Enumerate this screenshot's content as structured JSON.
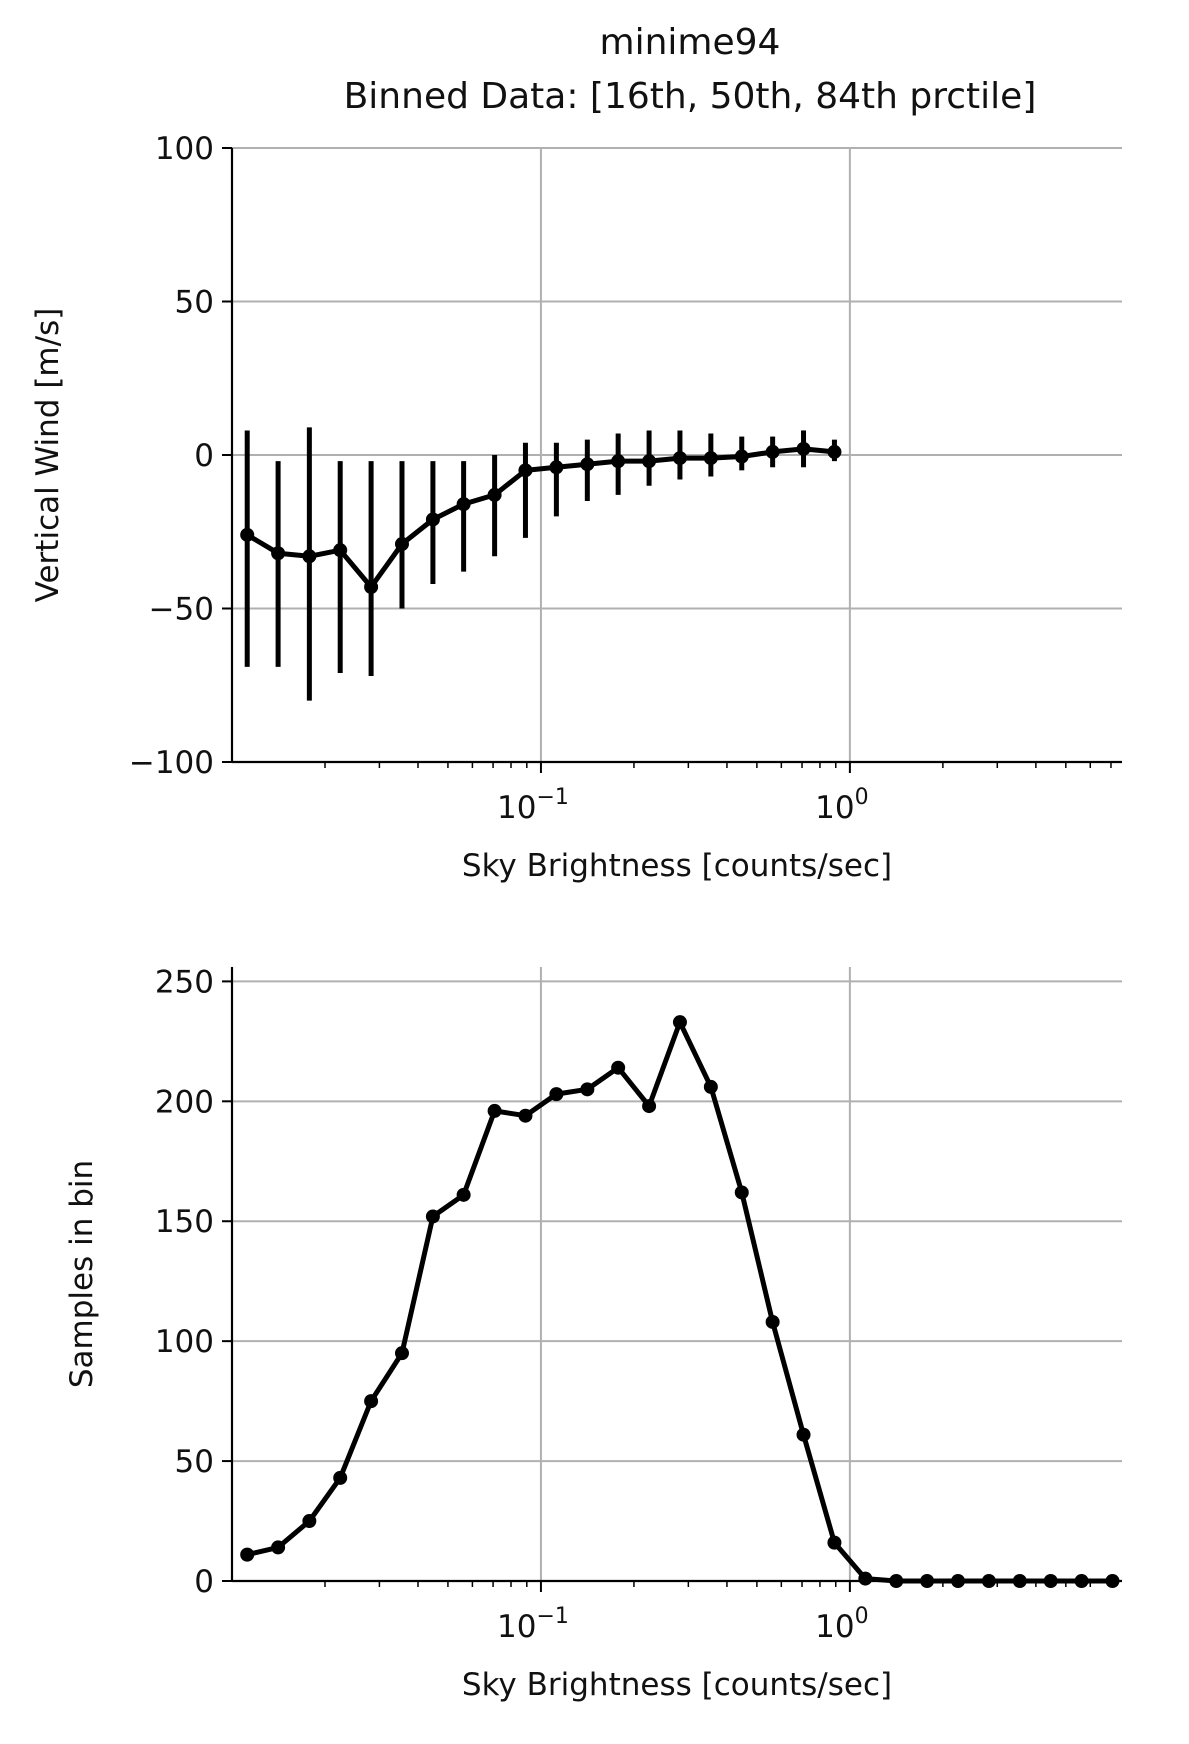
{
  "title": {
    "line1": "minime94",
    "line2": "Binned Data: [16th, 50th, 84th prctile]"
  },
  "chart_data": [
    {
      "type": "line",
      "panel": "top",
      "xlabel": "Sky Brightness [counts/sec]",
      "ylabel": "Vertical Wind [m/s]",
      "xscale": "log",
      "xlim": [
        0.01,
        7.6
      ],
      "ylim": [
        -100,
        100
      ],
      "yticks": [
        -100,
        -50,
        0,
        50,
        100
      ],
      "ytick_labels": [
        "−100",
        "−50",
        "0",
        "50",
        "100"
      ],
      "xticks": [
        0.1,
        1
      ],
      "xtick_labels": [
        {
          "base": "10",
          "exp": "−1"
        },
        {
          "base": "10",
          "exp": "0"
        }
      ],
      "grid": true,
      "color": "#000000",
      "x": [
        0.0112,
        0.0141,
        0.0178,
        0.0224,
        0.0282,
        0.0355,
        0.0447,
        0.0562,
        0.0708,
        0.0891,
        0.1122,
        0.1413,
        0.1778,
        0.2239,
        0.2818,
        0.3548,
        0.4467,
        0.5623,
        0.7079,
        0.8913
      ],
      "y": [
        -26,
        -32,
        -33,
        -31,
        -43,
        -29,
        -21,
        -16,
        -13,
        -5,
        -4,
        -3,
        -2,
        -2,
        -1,
        -1,
        -0.5,
        1,
        2,
        1
      ],
      "p16": [
        -69,
        -69,
        -80,
        -71,
        -72,
        -50,
        -42,
        -38,
        -33,
        -27,
        -20,
        -15,
        -13,
        -10,
        -8,
        -7,
        -5,
        -4,
        -4,
        -2
      ],
      "p84": [
        8,
        -2,
        9,
        -2,
        -2,
        -2,
        -2,
        -2,
        0,
        4,
        4,
        5,
        7,
        8,
        8,
        7,
        6,
        6,
        8,
        5
      ]
    },
    {
      "type": "line",
      "panel": "bottom",
      "xlabel": "Sky Brightness [counts/sec]",
      "ylabel": "Samples in bin",
      "xscale": "log",
      "xlim": [
        0.01,
        7.6
      ],
      "ylim": [
        0,
        256
      ],
      "yticks": [
        0,
        50,
        100,
        150,
        200,
        250
      ],
      "ytick_labels": [
        "0",
        "50",
        "100",
        "150",
        "200",
        "250"
      ],
      "xticks": [
        0.1,
        1
      ],
      "xtick_labels": [
        {
          "base": "10",
          "exp": "−1"
        },
        {
          "base": "10",
          "exp": "0"
        }
      ],
      "grid": true,
      "color": "#000000",
      "x": [
        0.0112,
        0.0141,
        0.0178,
        0.0224,
        0.0282,
        0.0355,
        0.0447,
        0.0562,
        0.0708,
        0.0891,
        0.1122,
        0.1413,
        0.1778,
        0.2239,
        0.2818,
        0.3548,
        0.4467,
        0.5623,
        0.7079,
        0.8913,
        1.122,
        1.413,
        1.778,
        2.239,
        2.818,
        3.548,
        4.467,
        5.623,
        7.079
      ],
      "values": [
        11,
        14,
        25,
        43,
        75,
        95,
        152,
        161,
        196,
        194,
        203,
        205,
        214,
        198,
        233,
        206,
        162,
        108,
        61,
        16,
        1,
        0,
        0,
        0,
        0,
        0,
        0,
        0,
        0
      ]
    }
  ]
}
